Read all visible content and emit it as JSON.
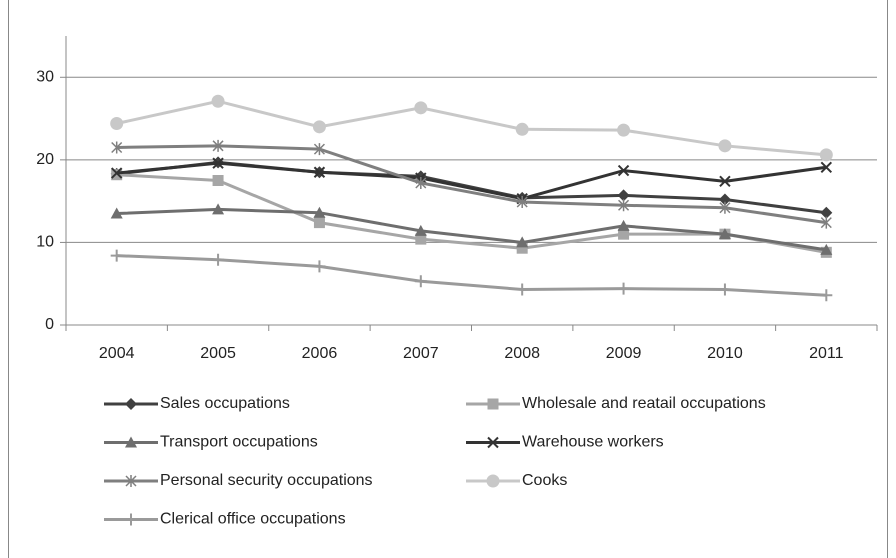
{
  "chart_data": {
    "type": "line",
    "categories": [
      "2004",
      "2005",
      "2006",
      "2007",
      "2008",
      "2009",
      "2010",
      "2011"
    ],
    "ylim": [
      0,
      35
    ],
    "yticks": [
      0,
      10,
      20,
      30
    ],
    "grid": true,
    "legend": "bottom",
    "series": [
      {
        "name": "Sales occupations",
        "color": "#404040",
        "marker": "diamond",
        "values": [
          18.3,
          19.7,
          18.5,
          18.0,
          15.4,
          15.7,
          15.2,
          13.6
        ]
      },
      {
        "name": "Wholesale and reatail occupations",
        "color": "#a6a6a6",
        "marker": "square",
        "values": [
          18.2,
          17.5,
          12.4,
          10.4,
          9.3,
          11.0,
          11.0,
          8.8
        ]
      },
      {
        "name": "Transport occupations",
        "color": "#6e6e6e",
        "marker": "triangle",
        "values": [
          13.5,
          14.0,
          13.6,
          11.4,
          10.0,
          12.0,
          11.0,
          9.1
        ]
      },
      {
        "name": "Warehouse workers",
        "color": "#333333",
        "marker": "x",
        "values": [
          18.4,
          19.6,
          18.5,
          17.8,
          15.3,
          18.7,
          17.4,
          19.1
        ]
      },
      {
        "name": "Personal security occupations",
        "color": "#7f7f7f",
        "marker": "asterisk",
        "values": [
          21.5,
          21.7,
          21.3,
          17.2,
          14.9,
          14.5,
          14.2,
          12.4
        ]
      },
      {
        "name": "Cooks",
        "color": "#c8c8c8",
        "marker": "circle",
        "values": [
          24.4,
          27.1,
          24.0,
          26.3,
          23.7,
          23.6,
          21.7,
          20.6
        ]
      },
      {
        "name": "Clerical office occupations",
        "color": "#9a9a9a",
        "marker": "plus",
        "values": [
          8.4,
          7.9,
          7.1,
          5.3,
          4.3,
          4.4,
          4.3,
          3.6
        ]
      }
    ]
  }
}
